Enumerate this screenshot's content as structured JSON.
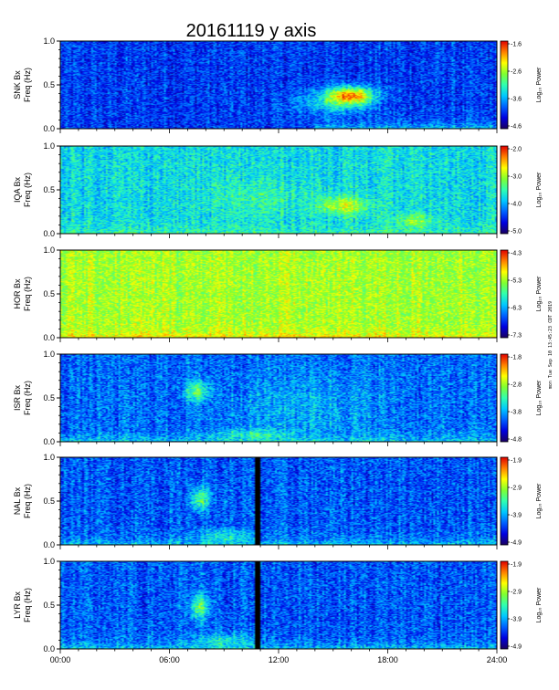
{
  "chart_data": {
    "type": "heatmap",
    "title": "20161119 y axis",
    "stamp": "mon Tue Sep 10 13:45:23 CDT 2019",
    "x_ticks": [
      "00:00",
      "06:00",
      "12:00",
      "18:00",
      "24:00"
    ],
    "x_range_hours": [
      0,
      24
    ],
    "y_ticks": [
      "0.0",
      "0.5",
      "1.0"
    ],
    "y_range": [
      0,
      1
    ],
    "ylabel": "Freq (Hz)",
    "colorbar_label": "Log₁₀ Power",
    "colormap": [
      "#1a0060",
      "#0000e0",
      "#0060ff",
      "#00c8ff",
      "#30ffb0",
      "#80ff30",
      "#ffff00",
      "#ff8000",
      "#e00000"
    ],
    "panels": [
      {
        "station": "SNK Bx",
        "cbar_ticks": [
          "-1.6",
          "-2.6",
          "-3.6",
          "-4.6"
        ],
        "base_level": 0.2,
        "noise": 0.12,
        "low_freq_boost": 0.18,
        "low_freq_start_hour": 14.0,
        "data_gap_hours": [],
        "features": [
          {
            "t": 16.0,
            "f": 0.38,
            "dt": 1.2,
            "df": 0.1,
            "amp": 0.6
          },
          {
            "t": 15.0,
            "f": 0.3,
            "dt": 2.0,
            "df": 0.14,
            "amp": 0.22
          }
        ]
      },
      {
        "station": "IQA Bx",
        "cbar_ticks": [
          "-2.0",
          "-3.0",
          "-4.0",
          "-5.0"
        ],
        "base_level": 0.42,
        "noise": 0.12,
        "low_freq_boost": 0.1,
        "low_freq_start_hour": 0,
        "data_gap_hours": [],
        "features": [
          {
            "t": 15.5,
            "f": 0.32,
            "dt": 1.3,
            "df": 0.1,
            "amp": 0.28
          },
          {
            "t": 19.5,
            "f": 0.15,
            "dt": 1.0,
            "df": 0.08,
            "amp": 0.18
          },
          {
            "t": 11.0,
            "f": 0.4,
            "dt": 2.5,
            "df": 0.2,
            "amp": 0.08
          }
        ]
      },
      {
        "station": "HOR Bx",
        "cbar_ticks": [
          "-4.3",
          "-5.3",
          "-6.3",
          "-7.3"
        ],
        "base_level": 0.66,
        "noise": 0.1,
        "low_freq_boost": 0.12,
        "low_freq_start_hour": 0,
        "data_gap_hours": [],
        "features": []
      },
      {
        "station": "ISR Bx",
        "cbar_ticks": [
          "-1.8",
          "-2.8",
          "-3.8",
          "-4.8"
        ],
        "base_level": 0.26,
        "noise": 0.13,
        "low_freq_boost": 0.15,
        "low_freq_start_hour": 0,
        "data_gap_hours": [],
        "features": [
          {
            "t": 7.5,
            "f": 0.58,
            "dt": 0.6,
            "df": 0.12,
            "amp": 0.3
          },
          {
            "t": 10.5,
            "f": 0.08,
            "dt": 1.8,
            "df": 0.06,
            "amp": 0.18
          },
          {
            "t": 13.5,
            "f": 0.4,
            "dt": 4.0,
            "df": 0.4,
            "amp": 0.1
          }
        ]
      },
      {
        "station": "NAL Bx",
        "cbar_ticks": [
          "-1.9",
          "-2.9",
          "-3.9",
          "-4.9"
        ],
        "base_level": 0.24,
        "noise": 0.13,
        "low_freq_boost": 0.16,
        "low_freq_start_hour": 0,
        "data_gap_hours": [
          [
            10.75,
            11.0
          ]
        ],
        "features": [
          {
            "t": 7.7,
            "f": 0.52,
            "dt": 0.5,
            "df": 0.14,
            "amp": 0.32
          },
          {
            "t": 9.0,
            "f": 0.1,
            "dt": 1.5,
            "df": 0.08,
            "amp": 0.18
          }
        ]
      },
      {
        "station": "LYR Bx",
        "cbar_ticks": [
          "-1.9",
          "-2.9",
          "-3.9",
          "-4.9"
        ],
        "base_level": 0.24,
        "noise": 0.13,
        "low_freq_boost": 0.16,
        "low_freq_start_hour": 0,
        "data_gap_hours": [
          [
            10.75,
            11.0
          ]
        ],
        "features": [
          {
            "t": 7.7,
            "f": 0.48,
            "dt": 0.5,
            "df": 0.14,
            "amp": 0.32
          },
          {
            "t": 9.0,
            "f": 0.1,
            "dt": 1.5,
            "df": 0.08,
            "amp": 0.18
          }
        ]
      }
    ]
  }
}
